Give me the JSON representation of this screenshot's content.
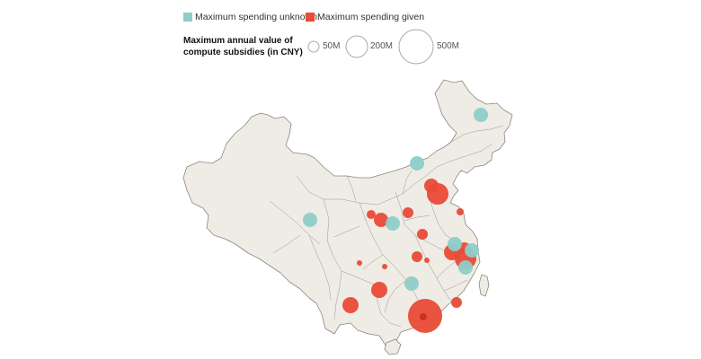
{
  "legend": {
    "unknown": {
      "label": "Maximum spending unknown",
      "color": "#8ecdc8"
    },
    "given": {
      "label": "Maximum spending given",
      "color": "#e84b37"
    }
  },
  "size_legend": {
    "title": "Maximum annual value of compute subsidies (in CNY)",
    "items": [
      {
        "label": "50M",
        "value_cny_millions": 50
      },
      {
        "label": "200M",
        "value_cny_millions": 200
      },
      {
        "label": "500M",
        "value_cny_millions": 500
      }
    ]
  },
  "colors": {
    "land": "#efebe5",
    "border": "#9a9690",
    "outline": "#8b8781"
  }
}
